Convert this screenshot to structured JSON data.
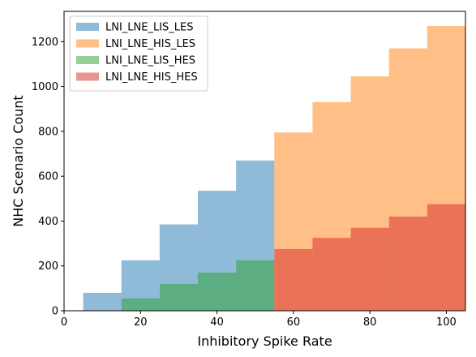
{
  "chart_data": {
    "type": "bar",
    "xlabel": "Inhibitory Spike Rate",
    "ylabel": "NHC Scenario Count",
    "xlim": [
      0,
      105
    ],
    "ylim": [
      0,
      1335
    ],
    "xticks": [
      0,
      20,
      40,
      60,
      80,
      100
    ],
    "yticks": [
      0,
      200,
      400,
      600,
      800,
      1000,
      1200
    ],
    "legend_position": "top-left",
    "grid": false,
    "series": [
      {
        "name": "LNI_LNE_LIS_LES",
        "color": "#1f77b4",
        "bins": [
          {
            "x0": 5,
            "x1": 15,
            "value": 80
          },
          {
            "x0": 15,
            "x1": 25,
            "value": 225
          },
          {
            "x0": 25,
            "x1": 35,
            "value": 385
          },
          {
            "x0": 35,
            "x1": 45,
            "value": 535
          },
          {
            "x0": 45,
            "x1": 55,
            "value": 670
          }
        ]
      },
      {
        "name": "LNI_LNE_HIS_LES",
        "color": "#ff7f0e",
        "bins": [
          {
            "x0": 55,
            "x1": 65,
            "value": 795
          },
          {
            "x0": 65,
            "x1": 75,
            "value": 930
          },
          {
            "x0": 75,
            "x1": 85,
            "value": 1045
          },
          {
            "x0": 85,
            "x1": 95,
            "value": 1170
          },
          {
            "x0": 95,
            "x1": 105,
            "value": 1270
          }
        ]
      },
      {
        "name": "LNI_LNE_LIS_HES",
        "color": "#2ca02c",
        "bins": [
          {
            "x0": 15,
            "x1": 25,
            "value": 55
          },
          {
            "x0": 25,
            "x1": 35,
            "value": 120
          },
          {
            "x0": 35,
            "x1": 45,
            "value": 170
          },
          {
            "x0": 45,
            "x1": 55,
            "value": 225
          }
        ]
      },
      {
        "name": "LNI_LNE_HIS_HES",
        "color": "#d62728",
        "bins": [
          {
            "x0": 55,
            "x1": 65,
            "value": 275
          },
          {
            "x0": 65,
            "x1": 75,
            "value": 325
          },
          {
            "x0": 75,
            "x1": 85,
            "value": 370
          },
          {
            "x0": 85,
            "x1": 95,
            "value": 420
          },
          {
            "x0": 95,
            "x1": 105,
            "value": 475
          }
        ]
      }
    ]
  }
}
